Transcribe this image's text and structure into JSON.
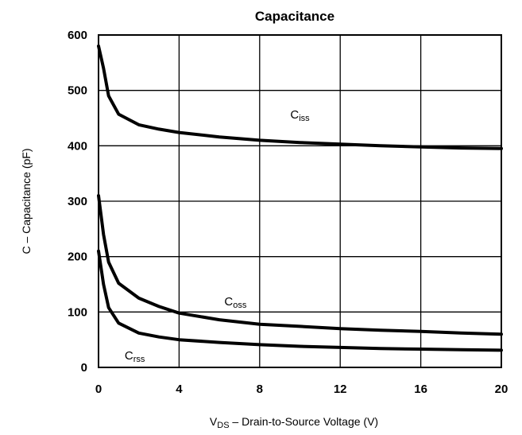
{
  "chart_data": {
    "type": "line",
    "title": "Capacitance",
    "xlabel": {
      "main": "V",
      "sub": "DS",
      "rest": " – Drain-to-Source Voltage (V)"
    },
    "ylabel": "C – Capacitance (pF)",
    "xlim": [
      0,
      20
    ],
    "ylim": [
      0,
      600
    ],
    "xticks": [
      0,
      4,
      8,
      12,
      16,
      20
    ],
    "yticks": [
      0,
      100,
      200,
      300,
      400,
      500,
      600
    ],
    "grid": true,
    "series": [
      {
        "name": "Ciss",
        "label_main": "C",
        "label_sub": "iss",
        "label_at": [
          10,
          455
        ],
        "points": [
          [
            0,
            580
          ],
          [
            0.25,
            540
          ],
          [
            0.5,
            490
          ],
          [
            1,
            457
          ],
          [
            2,
            438
          ],
          [
            3,
            430
          ],
          [
            4,
            424
          ],
          [
            6,
            416
          ],
          [
            8,
            410
          ],
          [
            10,
            406
          ],
          [
            12,
            403
          ],
          [
            14,
            400
          ],
          [
            16,
            398
          ],
          [
            18,
            396
          ],
          [
            20,
            395
          ]
        ]
      },
      {
        "name": "Coss",
        "label_main": "C",
        "label_sub": "oss",
        "label_at": [
          6.8,
          118
        ],
        "points": [
          [
            0,
            310
          ],
          [
            0.25,
            240
          ],
          [
            0.5,
            190
          ],
          [
            1,
            152
          ],
          [
            2,
            125
          ],
          [
            3,
            110
          ],
          [
            4,
            98
          ],
          [
            6,
            86
          ],
          [
            8,
            78
          ],
          [
            10,
            74
          ],
          [
            12,
            70
          ],
          [
            14,
            67
          ],
          [
            16,
            65
          ],
          [
            18,
            62
          ],
          [
            20,
            60
          ]
        ]
      },
      {
        "name": "Crss",
        "label_main": "C",
        "label_sub": "rss",
        "label_at": [
          1.8,
          20
        ],
        "points": [
          [
            0,
            210
          ],
          [
            0.25,
            150
          ],
          [
            0.5,
            108
          ],
          [
            1,
            80
          ],
          [
            2,
            62
          ],
          [
            3,
            55
          ],
          [
            4,
            50
          ],
          [
            6,
            45
          ],
          [
            8,
            41
          ],
          [
            10,
            38
          ],
          [
            12,
            36
          ],
          [
            14,
            34
          ],
          [
            16,
            33
          ],
          [
            18,
            32
          ],
          [
            20,
            31
          ]
        ]
      }
    ]
  }
}
